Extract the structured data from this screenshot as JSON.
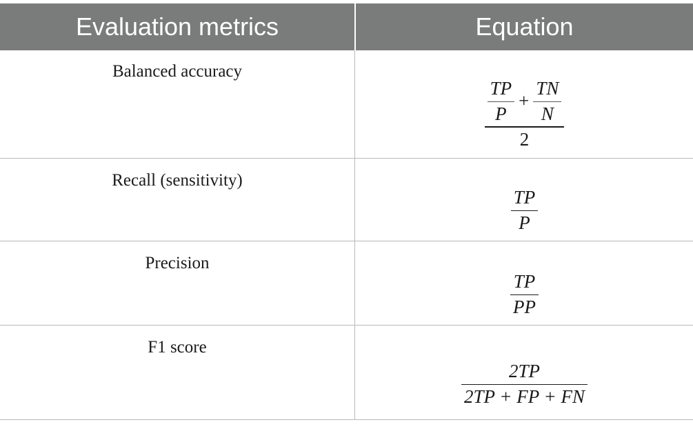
{
  "table": {
    "headers": [
      "Evaluation metrics",
      "Equation"
    ],
    "rows": [
      {
        "metric": "Balanced accuracy",
        "equation": {
          "num_a_top": "TP",
          "num_a_bottom": "P",
          "plus": "+",
          "num_b_top": "TN",
          "num_b_bottom": "N",
          "denominator": "2"
        }
      },
      {
        "metric": "Recall (sensitivity)",
        "equation": {
          "numerator": "TP",
          "denominator": "P"
        }
      },
      {
        "metric": "Precision",
        "equation": {
          "numerator": "TP",
          "denominator": "PP"
        }
      },
      {
        "metric": "F1 score",
        "equation": {
          "numerator": "2TP",
          "denominator": "2TP + FP + FN"
        }
      }
    ]
  }
}
